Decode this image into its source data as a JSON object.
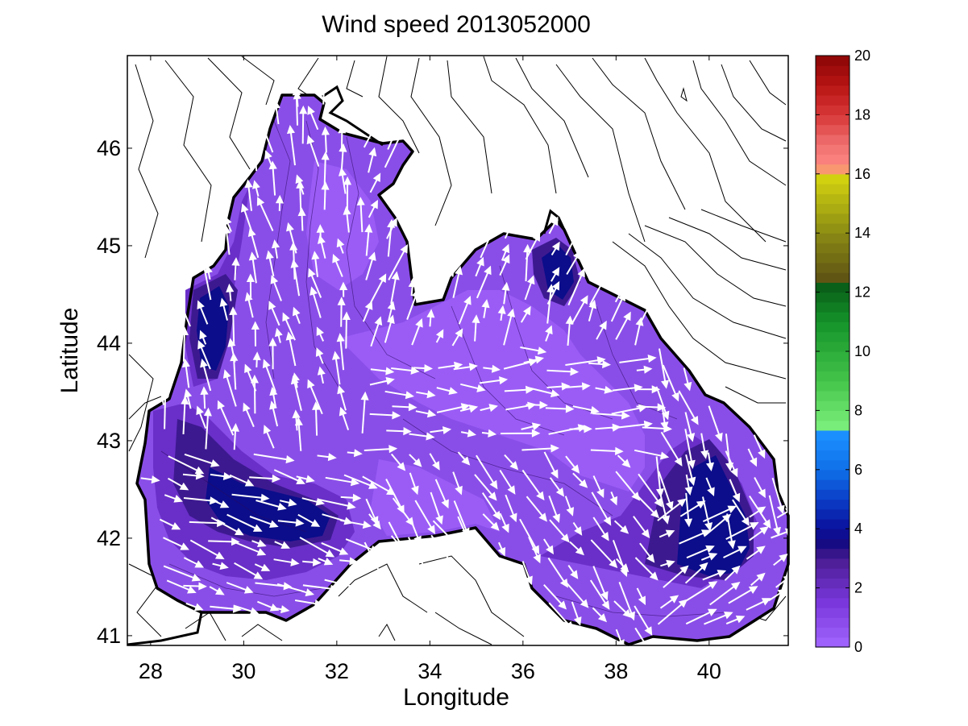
{
  "chart_data": {
    "type": "contour-map",
    "title": "Wind speed 2013052000",
    "xlabel": "Longitude",
    "ylabel": "Latitude",
    "xlim": [
      27.5,
      41.7
    ],
    "ylim": [
      40.9,
      46.95
    ],
    "xticks": [
      "28",
      "30",
      "32",
      "34",
      "36",
      "38",
      "40"
    ],
    "yticks": [
      "41",
      "42",
      "43",
      "44",
      "45",
      "46"
    ],
    "colorbar": {
      "range": [
        0,
        20
      ],
      "ticks": [
        "0",
        "2",
        "4",
        "6",
        "8",
        "10",
        "12",
        "14",
        "16",
        "18",
        "20"
      ]
    },
    "grid": false,
    "legend": "none",
    "field": "filled wind-speed contours over the sea with white wind vectors and black contour lines over land"
  },
  "colors": {
    "sea_light": "#9b5cf6",
    "sea_mid": "#7a3bd4",
    "sea_dark": "#5424a8",
    "sea_darker": "#3a1482",
    "sea_max": "#0b0d8a",
    "vector": "#ffffff",
    "coast": "#000000"
  }
}
